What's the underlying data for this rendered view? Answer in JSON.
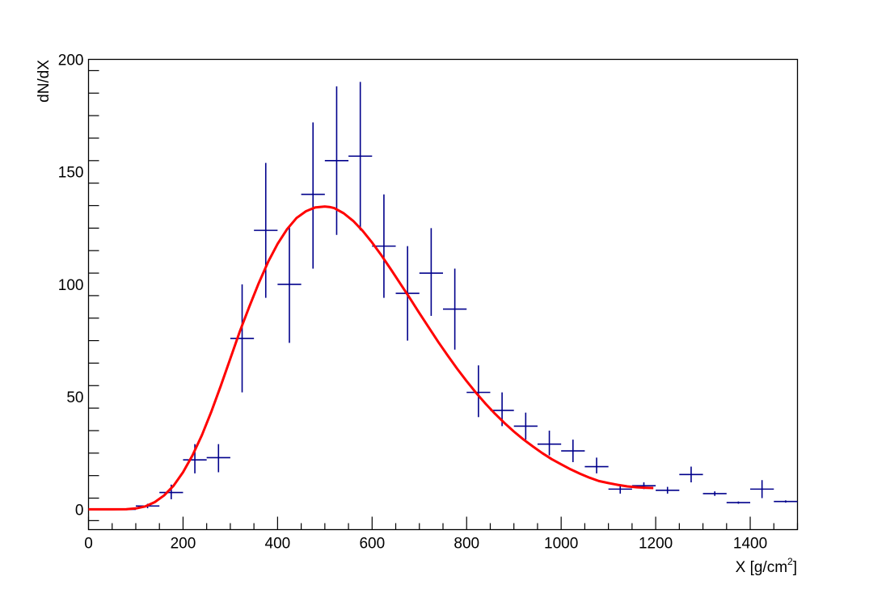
{
  "chart_data": {
    "type": "scatter",
    "title": "",
    "xlabel": "X [g/cm",
    "xlabel_sup": "2",
    "xlabel_tail": "]",
    "ylabel": "dN/dX",
    "xlim": [
      0,
      1500
    ],
    "ylim": [
      -9,
      200
    ],
    "xticks": [
      0,
      200,
      400,
      600,
      800,
      1000,
      1200,
      1400
    ],
    "yticks": [
      0,
      50,
      100,
      150,
      200
    ],
    "grid": false,
    "legend": "none",
    "colors": {
      "data": "#00008b",
      "fit": "#ff0000",
      "axis": "#000000"
    },
    "series": [
      {
        "type": "errorbar",
        "bin_width": 50,
        "points": [
          {
            "x": 25,
            "y": 0,
            "lo": 0,
            "hi": 0
          },
          {
            "x": 75,
            "y": 0,
            "lo": 0,
            "hi": 0
          },
          {
            "x": 125,
            "y": 1.5,
            "lo": 0.5,
            "hi": 2.5
          },
          {
            "x": 175,
            "y": 7.5,
            "lo": 4.5,
            "hi": 11
          },
          {
            "x": 225,
            "y": 22,
            "lo": 16,
            "hi": 29
          },
          {
            "x": 275,
            "y": 23,
            "lo": 16.5,
            "hi": 29
          },
          {
            "x": 325,
            "y": 76,
            "lo": 52,
            "hi": 100
          },
          {
            "x": 375,
            "y": 124,
            "lo": 94,
            "hi": 154
          },
          {
            "x": 425,
            "y": 100,
            "lo": 74,
            "hi": 126
          },
          {
            "x": 475,
            "y": 140,
            "lo": 107,
            "hi": 172
          },
          {
            "x": 525,
            "y": 155,
            "lo": 122,
            "hi": 188
          },
          {
            "x": 575,
            "y": 157,
            "lo": 124,
            "hi": 190
          },
          {
            "x": 625,
            "y": 117,
            "lo": 94,
            "hi": 140
          },
          {
            "x": 675,
            "y": 96,
            "lo": 75,
            "hi": 117
          },
          {
            "x": 725,
            "y": 105,
            "lo": 86,
            "hi": 125
          },
          {
            "x": 775,
            "y": 89,
            "lo": 71,
            "hi": 107
          },
          {
            "x": 825,
            "y": 52,
            "lo": 41,
            "hi": 64
          },
          {
            "x": 875,
            "y": 44,
            "lo": 37,
            "hi": 52
          },
          {
            "x": 925,
            "y": 37,
            "lo": 31,
            "hi": 43
          },
          {
            "x": 975,
            "y": 29,
            "lo": 24,
            "hi": 35
          },
          {
            "x": 1025,
            "y": 26,
            "lo": 21,
            "hi": 31
          },
          {
            "x": 1075,
            "y": 19,
            "lo": 16,
            "hi": 23
          },
          {
            "x": 1125,
            "y": 9,
            "lo": 7,
            "hi": 11
          },
          {
            "x": 1175,
            "y": 10.5,
            "lo": 9,
            "hi": 12
          },
          {
            "x": 1225,
            "y": 8.5,
            "lo": 7,
            "hi": 10
          },
          {
            "x": 1275,
            "y": 15.5,
            "lo": 12,
            "hi": 19
          },
          {
            "x": 1325,
            "y": 7,
            "lo": 6,
            "hi": 8
          },
          {
            "x": 1375,
            "y": 3,
            "lo": 2.5,
            "hi": 3.5
          },
          {
            "x": 1425,
            "y": 9,
            "lo": 5,
            "hi": 13
          },
          {
            "x": 1475,
            "y": 3.5,
            "lo": 3,
            "hi": 4
          }
        ]
      },
      {
        "type": "line",
        "x": [
          0,
          50,
          80,
          100,
          120,
          140,
          160,
          180,
          200,
          220,
          240,
          260,
          280,
          300,
          320,
          340,
          360,
          380,
          400,
          420,
          440,
          460,
          480,
          500,
          510,
          520,
          540,
          560,
          580,
          600,
          620,
          640,
          660,
          680,
          700,
          720,
          740,
          760,
          780,
          800,
          820,
          840,
          860,
          880,
          900,
          920,
          940,
          960,
          980,
          1000,
          1020,
          1040,
          1060,
          1080,
          1100,
          1120,
          1140,
          1160,
          1180,
          1195
        ],
        "y": [
          0,
          0,
          0.1,
          0.4,
          1.3,
          3.2,
          6.2,
          10.5,
          16.5,
          24,
          33,
          43.5,
          55,
          67,
          79,
          90,
          100.5,
          110,
          118,
          124.5,
          129.5,
          132.5,
          134.2,
          134.6,
          134.4,
          133.9,
          131.6,
          128.2,
          123.8,
          118.6,
          112.8,
          106.6,
          100.2,
          93.8,
          87.2,
          80.8,
          74.4,
          68.4,
          62.5,
          57,
          51.8,
          47,
          42.5,
          38.4,
          34.6,
          31.1,
          28,
          25,
          22.3,
          20,
          17.8,
          15.8,
          14.1,
          12.6,
          11.7,
          10.9,
          10.2,
          9.8,
          9.6,
          9.5
        ]
      }
    ]
  }
}
